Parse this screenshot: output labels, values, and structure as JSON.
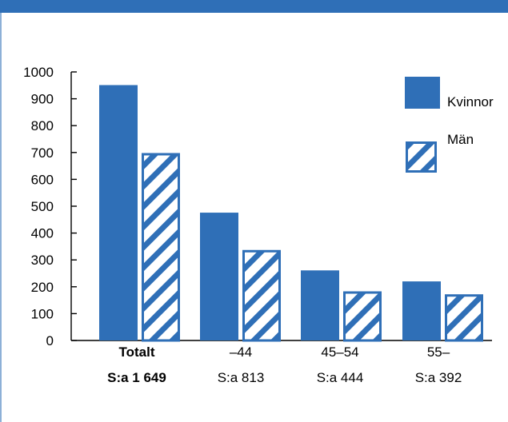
{
  "colors": {
    "header_bar": "#2f6fb7",
    "bar_fill": "#2f6fb7",
    "hatch_stroke": "#2f6fb7"
  },
  "chart_data": {
    "type": "bar",
    "title": "",
    "xlabel": "",
    "ylabel": "",
    "ylim": [
      0,
      1000
    ],
    "yticks": [
      0,
      100,
      200,
      300,
      400,
      500,
      600,
      700,
      800,
      900,
      1000
    ],
    "grid": false,
    "legend_position": "top-right",
    "categories": [
      "Totalt",
      "–44",
      "45–54",
      "55–"
    ],
    "category_bold": [
      true,
      false,
      false,
      false
    ],
    "sublabels": [
      "S:a 1 649",
      "S:a 813",
      "S:a 444",
      "S:a 392"
    ],
    "series": [
      {
        "name": "Kvinnor",
        "values": [
          951,
          476,
          261,
          220
        ],
        "pattern": "solid"
      },
      {
        "name": "Män",
        "values": [
          698,
          337,
          183,
          172
        ],
        "pattern": "hatched"
      }
    ]
  }
}
